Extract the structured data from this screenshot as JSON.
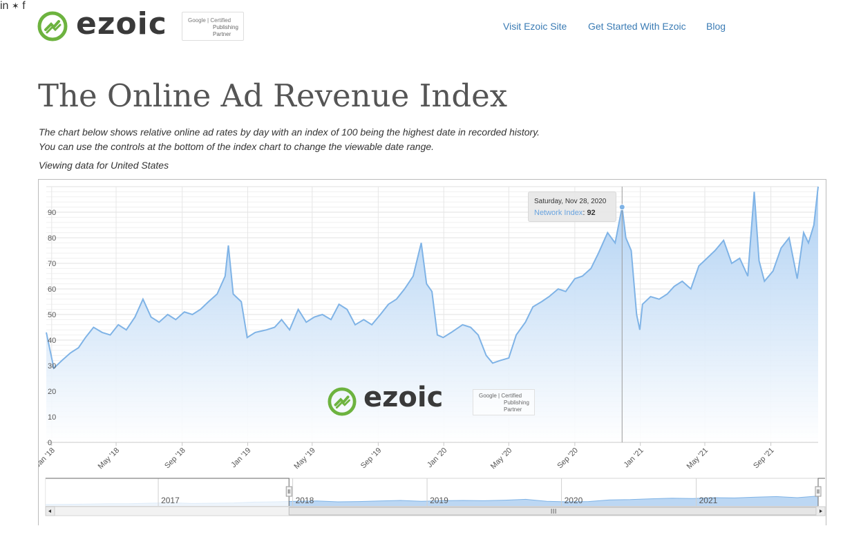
{
  "header": {
    "brand": "ezoic",
    "badge": {
      "google": "Google",
      "certified": "Certified",
      "publishing": "Publishing",
      "partner": "Partner"
    },
    "nav": [
      {
        "label": "Visit Ezoic Site"
      },
      {
        "label": "Get Started With Ezoic"
      },
      {
        "label": "Blog"
      }
    ],
    "social": {
      "linkedin": "in",
      "twitter": "✶",
      "facebook": "f"
    }
  },
  "page": {
    "title": "The Online Ad Revenue Index",
    "description_1": "The chart below shows relative online ad rates by day with an index of 100 being the highest date in recorded history.",
    "description_2": "You can use the controls at the bottom of the index chart to change the viewable date range.",
    "viewing": "Viewing data for United States"
  },
  "tooltip": {
    "date": "Saturday, Nov 28, 2020",
    "series": "Network Index",
    "value": "92"
  },
  "colors": {
    "line": "#7fb3e6",
    "fill_top": "#a9cdf2",
    "fill_bottom": "#ffffff",
    "brand_green": "#6db33f",
    "link": "#3a7bb4"
  },
  "chart_data": {
    "type": "area",
    "series": [
      {
        "name": "Network Index",
        "x": [
          "2017-12-22",
          "2018-01-05",
          "2018-01-20",
          "2018-02-05",
          "2018-02-20",
          "2018-03-05",
          "2018-03-20",
          "2018-04-05",
          "2018-04-20",
          "2018-05-05",
          "2018-05-20",
          "2018-06-05",
          "2018-06-20",
          "2018-07-05",
          "2018-07-20",
          "2018-08-05",
          "2018-08-20",
          "2018-09-05",
          "2018-09-20",
          "2018-10-05",
          "2018-10-20",
          "2018-11-05",
          "2018-11-20",
          "2018-11-26",
          "2018-12-05",
          "2018-12-20",
          "2018-12-31",
          "2019-01-15",
          "2019-02-05",
          "2019-02-20",
          "2019-03-05",
          "2019-03-20",
          "2019-04-05",
          "2019-04-20",
          "2019-05-05",
          "2019-05-20",
          "2019-06-05",
          "2019-06-20",
          "2019-07-05",
          "2019-07-20",
          "2019-08-05",
          "2019-08-20",
          "2019-09-05",
          "2019-09-20",
          "2019-10-05",
          "2019-10-20",
          "2019-11-05",
          "2019-11-20",
          "2019-11-30",
          "2019-12-10",
          "2019-12-20",
          "2019-12-31",
          "2020-01-15",
          "2020-02-05",
          "2020-02-20",
          "2020-03-05",
          "2020-03-20",
          "2020-04-01",
          "2020-04-15",
          "2020-05-01",
          "2020-05-15",
          "2020-06-01",
          "2020-06-15",
          "2020-07-01",
          "2020-07-15",
          "2020-08-01",
          "2020-08-15",
          "2020-09-01",
          "2020-09-15",
          "2020-10-01",
          "2020-10-15",
          "2020-11-01",
          "2020-11-15",
          "2020-11-28",
          "2020-12-05",
          "2020-12-15",
          "2020-12-25",
          "2020-12-31",
          "2021-01-05",
          "2021-01-20",
          "2021-02-05",
          "2021-02-20",
          "2021-03-05",
          "2021-03-20",
          "2021-04-05",
          "2021-04-20",
          "2021-05-05",
          "2021-05-20",
          "2021-06-05",
          "2021-06-20",
          "2021-07-05",
          "2021-07-20",
          "2021-08-01",
          "2021-08-10",
          "2021-08-20",
          "2021-09-05",
          "2021-09-20",
          "2021-10-05",
          "2021-10-20",
          "2021-11-01",
          "2021-11-10",
          "2021-11-20",
          "2021-11-28"
        ],
        "values": [
          43,
          29,
          32,
          35,
          37,
          41,
          45,
          43,
          42,
          46,
          44,
          49,
          56,
          49,
          47,
          50,
          48,
          51,
          50,
          52,
          55,
          58,
          65,
          77,
          58,
          55,
          41,
          43,
          44,
          45,
          48,
          44,
          52,
          47,
          49,
          50,
          48,
          54,
          52,
          46,
          48,
          46,
          50,
          54,
          56,
          60,
          65,
          78,
          62,
          59,
          42,
          41,
          43,
          46,
          45,
          42,
          34,
          31,
          32,
          33,
          42,
          47,
          53,
          55,
          57,
          60,
          59,
          64,
          65,
          68,
          74,
          82,
          78,
          92,
          80,
          75,
          50,
          44,
          54,
          57,
          56,
          58,
          61,
          63,
          60,
          69,
          72,
          75,
          79,
          70,
          72,
          65,
          98,
          71,
          63,
          67,
          76,
          80,
          64,
          82,
          78,
          85,
          100
        ]
      }
    ],
    "x_tick_labels": [
      "Jan '18",
      "May '18",
      "Sep '18",
      "Jan '19",
      "May '19",
      "Sep '19",
      "Jan '20",
      "May '20",
      "Sep '20",
      "Jan '21",
      "May '21",
      "Sep '21"
    ],
    "x_ticks": [
      "2018-01-01",
      "2018-05-01",
      "2018-09-01",
      "2019-01-01",
      "2019-05-01",
      "2019-09-01",
      "2020-01-01",
      "2020-05-01",
      "2020-09-01",
      "2021-01-01",
      "2021-05-01",
      "2021-09-01"
    ],
    "y_tick_labels": [
      "0",
      "10",
      "20",
      "30",
      "40",
      "50",
      "60",
      "70",
      "80",
      "90"
    ],
    "xlim": [
      "2017-12-22",
      "2021-11-28"
    ],
    "ylim": [
      0,
      100
    ],
    "grid": true,
    "navigator": {
      "year_labels": [
        "2017",
        "2018",
        "2019",
        "2020",
        "2021"
      ],
      "year_starts": [
        "2017-01-01",
        "2018-01-01",
        "2019-01-01",
        "2020-01-01",
        "2021-01-01"
      ],
      "range": [
        "2016-03-01",
        "2021-11-28"
      ],
      "selected": [
        "2017-12-22",
        "2021-11-28"
      ],
      "series": [
        5,
        6,
        7,
        8,
        8,
        10,
        12,
        9,
        10,
        11,
        14,
        15,
        17,
        18,
        15,
        16,
        18,
        20,
        17,
        19,
        20,
        19,
        21,
        24,
        17,
        15,
        16,
        22,
        23,
        26,
        28,
        27,
        30,
        29,
        32,
        34,
        30,
        36
      ]
    }
  }
}
